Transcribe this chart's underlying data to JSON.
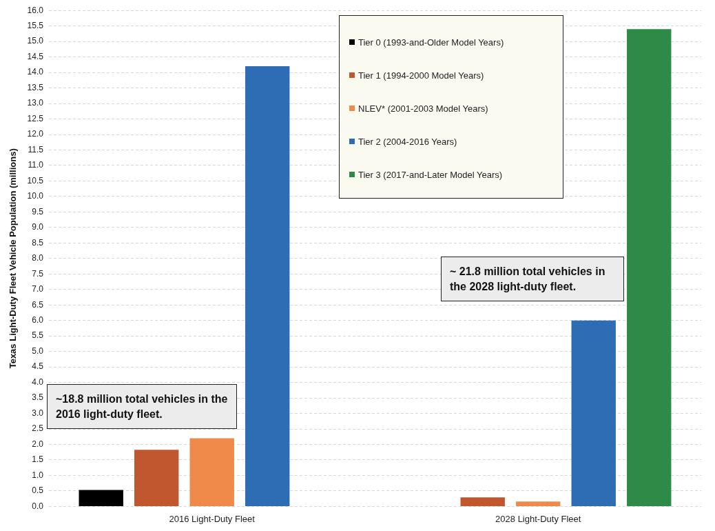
{
  "chart_data": {
    "type": "bar",
    "ylabel": "Texas Light-Duty Fleet Vehicle Population (millions)",
    "categories": [
      "2016 Light-Duty Fleet",
      "2028 Light-Duty Fleet"
    ],
    "series": [
      {
        "name": "Tier 0 (1993-and-Older Model Years)",
        "color": "#000000",
        "values": [
          0.53,
          null
        ]
      },
      {
        "name": "Tier 1 (1994-2000 Model Years)",
        "color": "#c0572f",
        "values": [
          1.83,
          0.29
        ]
      },
      {
        "name": "NLEV* (2001-2003 Model Years)",
        "color": "#f08a4b",
        "values": [
          2.2,
          0.16
        ]
      },
      {
        "name": "Tier 2 (2004-2016 Years)",
        "color": "#2e6db4",
        "values": [
          14.2,
          6.0
        ]
      },
      {
        "name": "Tier 3 (2017-and-Later Model Years)",
        "color": "#2e8b47",
        "values": [
          null,
          15.4
        ]
      }
    ],
    "ylim": [
      0,
      16
    ],
    "yticks": [
      {
        "value": 0,
        "label": "0.0"
      },
      0.5,
      {
        "value": 1,
        "label": "1.0"
      },
      1.5,
      {
        "value": 2,
        "label": "2.0"
      },
      2.5,
      {
        "value": 3,
        "label": "3.0"
      },
      3.5,
      {
        "value": 4,
        "label": "4.0"
      },
      4.5,
      {
        "value": 5,
        "label": "5.0"
      },
      5.5,
      {
        "value": 6,
        "label": "6.0"
      },
      6.5,
      {
        "value": 7,
        "label": "7.0"
      },
      7.5,
      {
        "value": 8,
        "label": "8.0"
      },
      8.5,
      {
        "value": 9,
        "label": "9.0"
      },
      9.5,
      {
        "value": 10,
        "label": "10.0"
      },
      10.5,
      {
        "value": 11,
        "label": "11.0"
      },
      11.5,
      {
        "value": 12,
        "label": "12.0"
      },
      12.5,
      {
        "value": 13,
        "label": "13.0"
      },
      13.5,
      {
        "value": 14,
        "label": "14.0"
      },
      14.5,
      {
        "value": 15,
        "label": "15.0"
      },
      15.5,
      {
        "value": 16,
        "label": "16.0"
      }
    ],
    "grid": "y",
    "legend": "top right",
    "annotations": [
      "~18.8 million total vehicles in the 2016 light-duty fleet.",
      "~ 21.8 million total vehicles in the 2028 light-duty fleet."
    ]
  }
}
